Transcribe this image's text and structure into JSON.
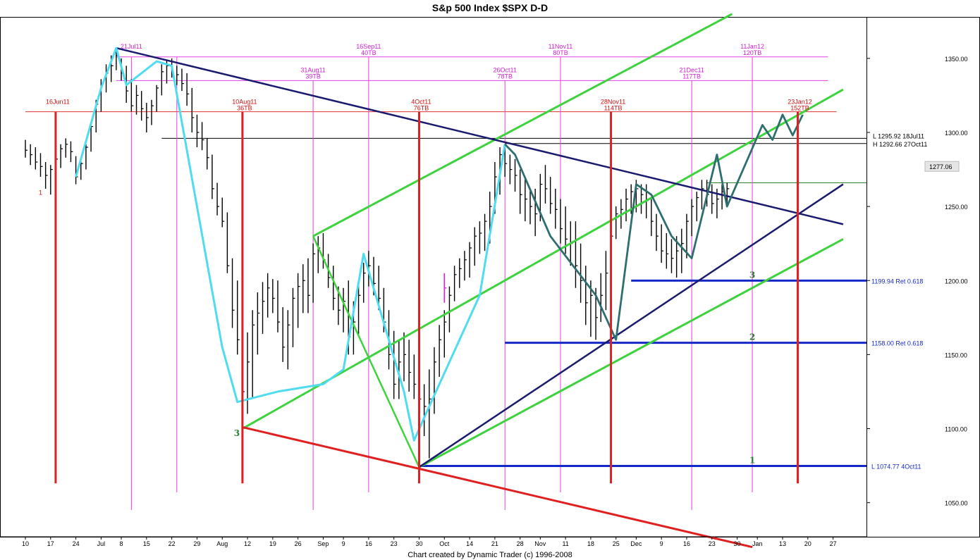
{
  "chart_data": {
    "type": "bar",
    "title": "S&p 500 Index $SPX   D-D",
    "footer": "Chart created by Dynamic Trader  (c) 1996-2008",
    "ylim": [
      1027,
      1378
    ],
    "y_ticks": [
      1050,
      1100,
      1150,
      1200,
      1250,
      1300,
      1350
    ],
    "y_tick_labels": [
      "1050.00",
      "1100.00",
      "1150.00",
      "1200.00",
      "1250.00",
      "1300.00",
      "1350.00"
    ],
    "x_ticks": [
      {
        "label": "10",
        "i": 0
      },
      {
        "label": "17",
        "i": 5
      },
      {
        "label": "24",
        "i": 10
      },
      {
        "label": "Jul",
        "i": 15
      },
      {
        "label": "8",
        "i": 19
      },
      {
        "label": "15",
        "i": 24
      },
      {
        "label": "22",
        "i": 29
      },
      {
        "label": "29",
        "i": 34
      },
      {
        "label": "Aug",
        "i": 39
      },
      {
        "label": "12",
        "i": 44
      },
      {
        "label": "19",
        "i": 49
      },
      {
        "label": "26",
        "i": 54
      },
      {
        "label": "Sep",
        "i": 59
      },
      {
        "label": "9",
        "i": 63
      },
      {
        "label": "16",
        "i": 68
      },
      {
        "label": "23",
        "i": 73
      },
      {
        "label": "30",
        "i": 78
      },
      {
        "label": "Oct",
        "i": 83
      },
      {
        "label": "14",
        "i": 88
      },
      {
        "label": "21",
        "i": 93
      },
      {
        "label": "28",
        "i": 98
      },
      {
        "label": "Nov",
        "i": 102
      },
      {
        "label": "11",
        "i": 107
      },
      {
        "label": "18",
        "i": 112
      },
      {
        "label": "25",
        "i": 117
      },
      {
        "label": "Dec",
        "i": 121
      },
      {
        "label": "9",
        "i": 126
      },
      {
        "label": "16",
        "i": 131
      },
      {
        "label": "23",
        "i": 136
      },
      {
        "label": "30",
        "i": 141
      },
      {
        "label": "Jan",
        "i": 145
      },
      {
        "label": "13",
        "i": 150
      },
      {
        "label": "20",
        "i": 155
      },
      {
        "label": "27",
        "i": 160
      }
    ],
    "price_bars": [
      [
        1295,
        1283,
        1288
      ],
      [
        1292,
        1278,
        1285
      ],
      [
        1290,
        1275,
        1280
      ],
      [
        1286,
        1270,
        1277
      ],
      [
        1280,
        1262,
        1271
      ],
      [
        1278,
        1258,
        1275
      ],
      [
        1285,
        1270,
        1282
      ],
      [
        1292,
        1276,
        1289
      ],
      [
        1296,
        1283,
        1292
      ],
      [
        1294,
        1280,
        1287
      ],
      [
        1284,
        1265,
        1270
      ],
      [
        1282,
        1268,
        1279
      ],
      [
        1292,
        1275,
        1290
      ],
      [
        1306,
        1287,
        1304
      ],
      [
        1322,
        1300,
        1319
      ],
      [
        1336,
        1314,
        1332
      ],
      [
        1346,
        1327,
        1340
      ],
      [
        1352,
        1334,
        1345
      ],
      [
        1357,
        1342,
        1352
      ],
      [
        1350,
        1335,
        1340
      ],
      [
        1345,
        1320,
        1328
      ],
      [
        1336,
        1314,
        1318
      ],
      [
        1332,
        1312,
        1325
      ],
      [
        1328,
        1308,
        1316
      ],
      [
        1320,
        1300,
        1310
      ],
      [
        1322,
        1305,
        1318
      ],
      [
        1332,
        1314,
        1330
      ],
      [
        1346,
        1325,
        1341
      ],
      [
        1349,
        1333,
        1345
      ],
      [
        1350,
        1337,
        1348
      ],
      [
        1345,
        1332,
        1339
      ],
      [
        1343,
        1328,
        1333
      ],
      [
        1340,
        1318,
        1326
      ],
      [
        1330,
        1300,
        1310
      ],
      [
        1312,
        1290,
        1300
      ],
      [
        1307,
        1288,
        1295
      ],
      [
        1296,
        1275,
        1283
      ],
      [
        1285,
        1255,
        1262
      ],
      [
        1266,
        1244,
        1250
      ],
      [
        1256,
        1236,
        1240
      ],
      [
        1246,
        1205,
        1210
      ],
      [
        1215,
        1168,
        1180
      ],
      [
        1200,
        1150,
        1160
      ],
      [
        1175,
        1120,
        1125
      ],
      [
        1165,
        1110,
        1145
      ],
      [
        1180,
        1120,
        1170
      ],
      [
        1192,
        1150,
        1178
      ],
      [
        1199,
        1164,
        1186
      ],
      [
        1205,
        1175,
        1195
      ],
      [
        1201,
        1178,
        1188
      ],
      [
        1200,
        1165,
        1172
      ],
      [
        1182,
        1145,
        1155
      ],
      [
        1180,
        1140,
        1170
      ],
      [
        1195,
        1155,
        1188
      ],
      [
        1205,
        1168,
        1196
      ],
      [
        1211,
        1178,
        1200
      ],
      [
        1215,
        1178,
        1190
      ],
      [
        1225,
        1185,
        1218
      ],
      [
        1230,
        1205,
        1222
      ],
      [
        1232,
        1208,
        1214
      ],
      [
        1218,
        1195,
        1202
      ],
      [
        1210,
        1180,
        1188
      ],
      [
        1196,
        1170,
        1180
      ],
      [
        1195,
        1165,
        1186
      ],
      [
        1200,
        1150,
        1162
      ],
      [
        1186,
        1150,
        1172
      ],
      [
        1200,
        1162,
        1190
      ],
      [
        1212,
        1185,
        1205
      ],
      [
        1220,
        1196,
        1210
      ],
      [
        1216,
        1190,
        1198
      ],
      [
        1210,
        1180,
        1188
      ],
      [
        1195,
        1165,
        1172
      ],
      [
        1180,
        1140,
        1150
      ],
      [
        1166,
        1120,
        1130
      ],
      [
        1160,
        1120,
        1145
      ],
      [
        1165,
        1132,
        1150
      ],
      [
        1160,
        1125,
        1138
      ],
      [
        1150,
        1120,
        1130
      ],
      [
        1145,
        1105,
        1120
      ],
      [
        1130,
        1095,
        1115
      ],
      [
        1140,
        1080,
        1120
      ],
      [
        1155,
        1110,
        1145
      ],
      [
        1170,
        1135,
        1160
      ],
      [
        1180,
        1148,
        1172
      ],
      [
        1196,
        1165,
        1190
      ],
      [
        1210,
        1186,
        1204
      ],
      [
        1215,
        1195,
        1208
      ],
      [
        1220,
        1200,
        1214
      ],
      [
        1226,
        1202,
        1222
      ],
      [
        1236,
        1210,
        1230
      ],
      [
        1240,
        1218,
        1232
      ],
      [
        1245,
        1220,
        1240
      ],
      [
        1260,
        1225,
        1250
      ],
      [
        1280,
        1245,
        1270
      ],
      [
        1290,
        1258,
        1285
      ],
      [
        1291,
        1270,
        1279
      ],
      [
        1285,
        1265,
        1275
      ],
      [
        1282,
        1260,
        1271
      ],
      [
        1275,
        1245,
        1258
      ],
      [
        1270,
        1240,
        1255
      ],
      [
        1262,
        1238,
        1250
      ],
      [
        1262,
        1230,
        1245
      ],
      [
        1272,
        1240,
        1265
      ],
      [
        1278,
        1252,
        1262
      ],
      [
        1270,
        1245,
        1252
      ],
      [
        1262,
        1235,
        1248
      ],
      [
        1255,
        1225,
        1235
      ],
      [
        1250,
        1218,
        1228
      ],
      [
        1240,
        1210,
        1225
      ],
      [
        1240,
        1195,
        1210
      ],
      [
        1225,
        1185,
        1200
      ],
      [
        1210,
        1170,
        1185
      ],
      [
        1200,
        1162,
        1190
      ],
      [
        1195,
        1160,
        1175
      ],
      [
        1205,
        1172,
        1190
      ],
      [
        1220,
        1180,
        1205
      ],
      [
        1240,
        1200,
        1230
      ],
      [
        1250,
        1228,
        1245
      ],
      [
        1255,
        1235,
        1248
      ],
      [
        1262,
        1240,
        1255
      ],
      [
        1265,
        1245,
        1260
      ],
      [
        1268,
        1246,
        1262
      ],
      [
        1265,
        1245,
        1258
      ],
      [
        1265,
        1242,
        1254
      ],
      [
        1255,
        1230,
        1240
      ],
      [
        1245,
        1220,
        1230
      ],
      [
        1238,
        1212,
        1220
      ],
      [
        1232,
        1208,
        1218
      ],
      [
        1228,
        1205,
        1215
      ],
      [
        1230,
        1202,
        1220
      ],
      [
        1235,
        1205,
        1225
      ],
      [
        1245,
        1215,
        1240
      ],
      [
        1255,
        1230,
        1250
      ],
      [
        1260,
        1240,
        1256
      ],
      [
        1268,
        1248,
        1262
      ],
      [
        1268,
        1250,
        1258
      ],
      [
        1265,
        1245,
        1252
      ],
      [
        1262,
        1242,
        1255
      ],
      [
        1265,
        1248,
        1260
      ],
      [
        1266,
        1250,
        1262
      ]
    ],
    "special_bar": {
      "i": 83,
      "low": 1185,
      "high": 1205,
      "close": 1195,
      "color": "#e020e0"
    },
    "swing_path_cyan": [
      [
        10,
        1270
      ],
      [
        15,
        1330
      ],
      [
        18,
        1357
      ],
      [
        20,
        1332
      ],
      [
        26,
        1348
      ],
      [
        29,
        1345
      ],
      [
        39,
        1155
      ],
      [
        42,
        1118
      ],
      [
        50,
        1125
      ],
      [
        59,
        1130
      ],
      [
        63,
        1140
      ],
      [
        67,
        1218
      ],
      [
        75,
        1125
      ],
      [
        77,
        1092
      ],
      [
        80,
        1115
      ],
      [
        90,
        1190
      ],
      [
        95,
        1292
      ]
    ],
    "swing_path_teal": [
      [
        95,
        1292
      ],
      [
        97,
        1285
      ],
      [
        104,
        1230
      ],
      [
        113,
        1190
      ],
      [
        117,
        1160
      ],
      [
        121,
        1265
      ],
      [
        124,
        1258
      ],
      [
        128,
        1230
      ],
      [
        132,
        1215
      ],
      [
        137,
        1285
      ],
      [
        139,
        1250
      ],
      [
        146,
        1305
      ],
      [
        148,
        1295
      ],
      [
        150,
        1312
      ],
      [
        152,
        1298
      ],
      [
        154,
        1312
      ]
    ],
    "green_zigzag": [
      [
        57,
        1230
      ],
      [
        63,
        1185
      ],
      [
        78,
        1074
      ]
    ],
    "green_channels": [
      {
        "from": [
          43,
          1100
        ],
        "to": [
          162,
          1329
        ]
      },
      {
        "from": [
          57,
          1230
        ],
        "to": [
          140,
          1380
        ]
      },
      {
        "from": [
          78,
          1074
        ],
        "to": [
          162,
          1228
        ]
      }
    ],
    "navy_lines": [
      {
        "from": [
          18,
          1357
        ],
        "to": [
          162,
          1238
        ]
      },
      {
        "from": [
          78,
          1074
        ],
        "to": [
          162,
          1265
        ]
      }
    ],
    "red_line": {
      "from": [
        43,
        1101
      ],
      "to": [
        144,
        1020
      ]
    },
    "red_verticals": [
      {
        "i": 6,
        "date": "16Jun11",
        "tb": "",
        "top": 1314,
        "bottom": 1063
      },
      {
        "i": 43,
        "date": "10Aug11",
        "tb": "36TB",
        "top": 1314,
        "bottom": 1063
      },
      {
        "i": 78,
        "date": "4Oct11",
        "tb": "76TB",
        "top": 1314,
        "bottom": 1063
      },
      {
        "i": 116,
        "date": "28Nov11",
        "tb": "114TB",
        "top": 1314,
        "bottom": 1063
      },
      {
        "i": 153,
        "date": "23Jan12",
        "tb": "152TB",
        "top": 1314,
        "bottom": 1063
      }
    ],
    "magenta_verticals": [
      {
        "i": 21,
        "date": "21Jul11",
        "tb": "",
        "top": 1351,
        "bottom": 1045
      },
      {
        "i": 30,
        "date": "",
        "tb": "",
        "top": 1351,
        "bottom": 1057
      },
      {
        "i": 57,
        "date": "31Aug11",
        "tb": "39TB",
        "top": 1335,
        "bottom": 1045
      },
      {
        "i": 68,
        "date": "16Sep11",
        "tb": "40TB",
        "top": 1351,
        "bottom": 1057
      },
      {
        "i": 95,
        "date": "26Oct11",
        "tb": "78TB",
        "top": 1335,
        "bottom": 1045
      },
      {
        "i": 106,
        "date": "11Nov11",
        "tb": "80TB",
        "top": 1351,
        "bottom": 1057
      },
      {
        "i": 132,
        "date": "21Dec11",
        "tb": "117TB",
        "top": 1335,
        "bottom": 1045
      },
      {
        "i": 144,
        "date": "11Jan12",
        "tb": "120TB",
        "top": 1351,
        "bottom": 1057
      }
    ],
    "magenta_hlines": [
      {
        "y": 1351,
        "from": 18,
        "to": 159
      },
      {
        "y": 1335,
        "from": 18,
        "to": 159
      }
    ],
    "red_hline": {
      "y": 1314,
      "from": 0,
      "to": 153
    },
    "black_hlines": [
      {
        "y": 1296,
        "from": 27,
        "to": 160,
        "label": "L 1295.92 18Jul11"
      },
      {
        "y": 1292.5,
        "from": 95,
        "to": 160,
        "label": "H 1292.66 27Oct11"
      }
    ],
    "current_price": {
      "value": 1277.06,
      "label": "1277.06",
      "hline_y": 1266,
      "from": 135,
      "to": 159
    },
    "retracements": [
      {
        "y": 1199.94,
        "from": 120,
        "to": 159,
        "label": "1199.94 Ret 0.618",
        "num": "3"
      },
      {
        "y": 1158.0,
        "from": 95,
        "to": 159,
        "label": "1158.00 Ret 0.618",
        "num": "2"
      },
      {
        "y": 1074.77,
        "from": 78,
        "to": 159,
        "label": "L 1074.77 4Oct11",
        "num": "1"
      }
    ],
    "point_label_3": "3",
    "red_marker_label": "1"
  }
}
